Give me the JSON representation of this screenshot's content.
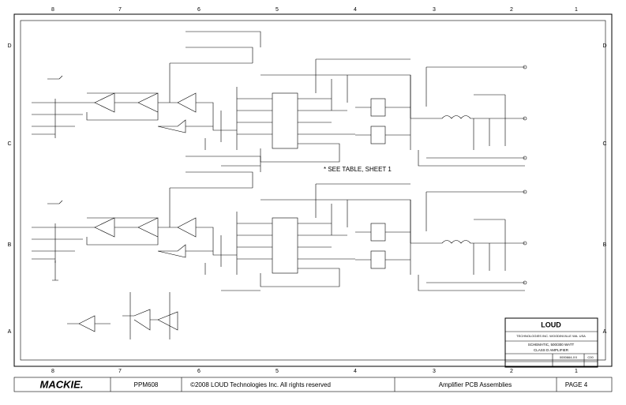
{
  "grid": {
    "columns": [
      "8",
      "7",
      "6",
      "5",
      "4",
      "3",
      "2",
      "1"
    ],
    "rows": [
      "D",
      "C",
      "B",
      "A"
    ]
  },
  "schematic": {
    "note": "* SEE TABLE, SHEET 1"
  },
  "title_block": {
    "logo": "LOUD",
    "company": "TECHNOLOGIES INC. WOODINVILLE WA. USA",
    "title_line1": "SCHEMATIC, 500/300 WATT",
    "title_line2": "CLASS D AMPLIFIER",
    "doc_number": "0000664-XX",
    "rev": "C00"
  },
  "footer": {
    "brand": "MACKIE.",
    "model": "PPM608",
    "copyright": "©2008 LOUD Technologies Inc. All rights reserved",
    "section": "Amplifier PCB Assemblies",
    "page": "PAGE 4"
  }
}
